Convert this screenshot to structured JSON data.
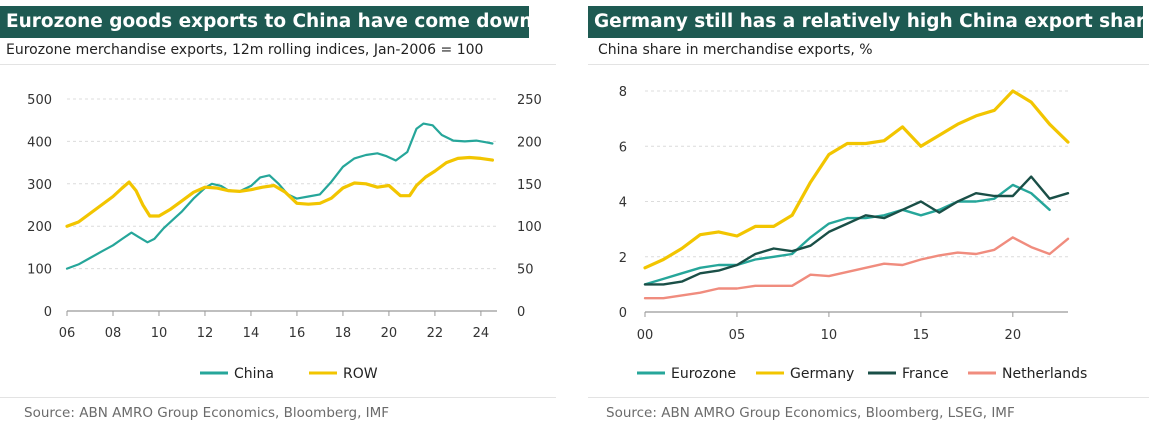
{
  "charts": [
    {
      "title": "Eurozone goods exports to China have come down",
      "subtitle": "Eurozone merchandise exports, 12m rolling indices, Jan-2006 = 100",
      "source": "Source: ABN AMRO Group Economics, Bloomberg, IMF"
    },
    {
      "title": "Germany still has a relatively high China export share",
      "subtitle": "China share in merchandise exports, %",
      "source": "Source: ABN AMRO Group Economics, Bloomberg, LSEG, IMF"
    }
  ],
  "chart_data": [
    {
      "type": "line",
      "title": "Eurozone goods exports to China have come down",
      "subtitle": "Eurozone merchandise exports, 12m rolling indices, Jan-2006 = 100",
      "x_ticks": [
        "06",
        "08",
        "10",
        "12",
        "14",
        "16",
        "18",
        "20",
        "22",
        "24"
      ],
      "x_tick_values": [
        2006,
        2008,
        2010,
        2012,
        2014,
        2016,
        2018,
        2020,
        2022,
        2024
      ],
      "xlim": [
        2006,
        2024.7
      ],
      "ylim_left": [
        0,
        500
      ],
      "y_ticks_left": [
        "0",
        "100",
        "200",
        "300",
        "400",
        "500"
      ],
      "ylim_right": [
        0,
        250
      ],
      "y_ticks_right": [
        "0",
        "50",
        "100",
        "150",
        "200",
        "250"
      ],
      "grid": "horizontal",
      "legend_position": "bottom",
      "series": [
        {
          "name": "China",
          "axis": "left",
          "color": "#26a69a",
          "x": [
            2006,
            2006.5,
            2007,
            2007.5,
            2008,
            2008.4,
            2008.8,
            2009.1,
            2009.5,
            2009.8,
            2010.2,
            2010.6,
            2011,
            2011.5,
            2012,
            2012.3,
            2012.7,
            2013,
            2013.5,
            2014,
            2014.4,
            2014.8,
            2015.2,
            2015.6,
            2016,
            2016.5,
            2017,
            2017.5,
            2018,
            2018.5,
            2019,
            2019.5,
            2019.9,
            2020.3,
            2020.8,
            2021.2,
            2021.5,
            2021.9,
            2022.3,
            2022.8,
            2023.3,
            2023.8,
            2024.2,
            2024.5
          ],
          "values": [
            100,
            110,
            125,
            140,
            155,
            170,
            185,
            175,
            162,
            170,
            195,
            215,
            235,
            265,
            290,
            300,
            295,
            285,
            282,
            295,
            315,
            320,
            300,
            275,
            265,
            270,
            275,
            305,
            340,
            360,
            368,
            372,
            365,
            355,
            375,
            430,
            442,
            438,
            415,
            402,
            400,
            402,
            398,
            395
          ]
        },
        {
          "name": "ROW",
          "axis": "right",
          "color": "#f2c500",
          "x": [
            2006,
            2006.5,
            2007,
            2007.5,
            2008,
            2008.4,
            2008.7,
            2009,
            2009.3,
            2009.6,
            2010,
            2010.5,
            2011,
            2011.5,
            2012,
            2012.5,
            2013,
            2013.5,
            2014,
            2014.5,
            2015,
            2015.5,
            2016,
            2016.5,
            2017,
            2017.5,
            2018,
            2018.5,
            2019,
            2019.5,
            2020,
            2020.5,
            2020.9,
            2021.2,
            2021.6,
            2022,
            2022.5,
            2023,
            2023.5,
            2024,
            2024.5
          ],
          "values": [
            100,
            105,
            115,
            125,
            135,
            145,
            152,
            142,
            125,
            112,
            112,
            120,
            130,
            140,
            146,
            145,
            142,
            141,
            143,
            146,
            148,
            140,
            127,
            126,
            127,
            133,
            145,
            151,
            150,
            146,
            148,
            136,
            136,
            148,
            158,
            165,
            175,
            180,
            181,
            180,
            178
          ]
        }
      ]
    },
    {
      "type": "line",
      "title": "Germany still has a relatively high China export share",
      "subtitle": "China share in merchandise exports, %",
      "x_ticks": [
        "00",
        "05",
        "10",
        "15",
        "20"
      ],
      "x_tick_values": [
        2000,
        2005,
        2010,
        2015,
        2020
      ],
      "xlim": [
        2000,
        2023
      ],
      "ylim": [
        0,
        8
      ],
      "y_ticks": [
        "0",
        "2",
        "4",
        "6",
        "8"
      ],
      "grid": "horizontal",
      "legend_position": "bottom",
      "series": [
        {
          "name": "Eurozone",
          "color": "#26a69a",
          "x": [
            2000,
            2001,
            2002,
            2003,
            2004,
            2005,
            2006,
            2007,
            2008,
            2009,
            2010,
            2011,
            2012,
            2013,
            2014,
            2015,
            2016,
            2017,
            2018,
            2019,
            2020,
            2021,
            2022
          ],
          "values": [
            1.0,
            1.2,
            1.4,
            1.6,
            1.7,
            1.7,
            1.9,
            2.0,
            2.1,
            2.7,
            3.2,
            3.4,
            3.4,
            3.5,
            3.7,
            3.5,
            3.7,
            4.0,
            4.0,
            4.1,
            4.6,
            4.3,
            3.7
          ]
        },
        {
          "name": "Germany",
          "color": "#f2c500",
          "x": [
            2000,
            2001,
            2002,
            2003,
            2004,
            2005,
            2006,
            2007,
            2008,
            2009,
            2010,
            2011,
            2012,
            2013,
            2014,
            2015,
            2016,
            2017,
            2018,
            2019,
            2020,
            2021,
            2022,
            2023
          ],
          "values": [
            1.6,
            1.9,
            2.3,
            2.8,
            2.9,
            2.75,
            3.1,
            3.1,
            3.5,
            4.7,
            5.7,
            6.1,
            6.1,
            6.2,
            6.7,
            6.0,
            6.4,
            6.8,
            7.1,
            7.3,
            8.0,
            7.6,
            6.8,
            6.15
          ]
        },
        {
          "name": "France",
          "color": "#1a4f47",
          "x": [
            2000,
            2001,
            2002,
            2003,
            2004,
            2005,
            2006,
            2007,
            2008,
            2009,
            2010,
            2011,
            2012,
            2013,
            2014,
            2015,
            2016,
            2017,
            2018,
            2019,
            2020,
            2021,
            2022,
            2023
          ],
          "values": [
            1.0,
            1.0,
            1.1,
            1.4,
            1.5,
            1.7,
            2.1,
            2.3,
            2.2,
            2.4,
            2.9,
            3.2,
            3.5,
            3.4,
            3.7,
            4.0,
            3.6,
            4.0,
            4.3,
            4.2,
            4.2,
            4.9,
            4.1,
            4.3
          ]
        },
        {
          "name": "Netherlands",
          "color": "#f08c7e",
          "x": [
            2000,
            2001,
            2002,
            2003,
            2004,
            2005,
            2006,
            2007,
            2008,
            2009,
            2010,
            2011,
            2012,
            2013,
            2014,
            2015,
            2016,
            2017,
            2018,
            2019,
            2020,
            2021,
            2022,
            2023
          ],
          "values": [
            0.5,
            0.5,
            0.6,
            0.7,
            0.85,
            0.85,
            0.95,
            0.95,
            0.95,
            1.35,
            1.3,
            1.45,
            1.6,
            1.75,
            1.7,
            1.9,
            2.05,
            2.15,
            2.1,
            2.25,
            2.7,
            2.35,
            2.1,
            2.65
          ]
        }
      ]
    }
  ]
}
